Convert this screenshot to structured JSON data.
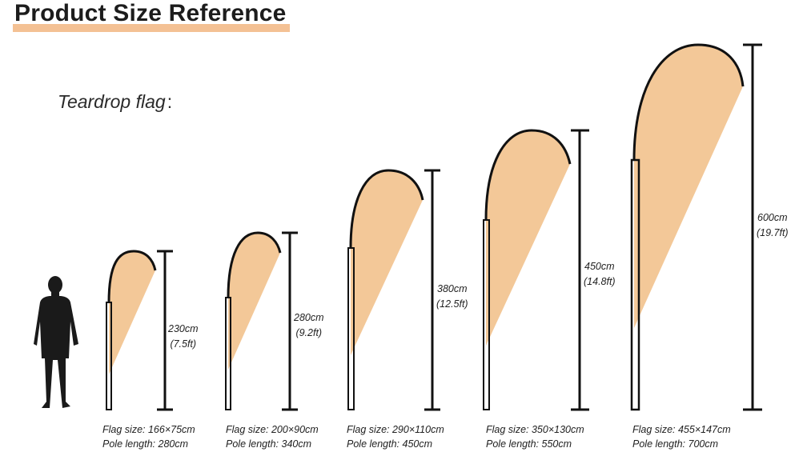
{
  "header": {
    "title": "Product Size Reference",
    "subtitle": "Teardrop flag",
    "subtitle_colon": ":"
  },
  "colors": {
    "flag_fill": "#f3c898",
    "title_underline": "#f4c194",
    "outline": "#111111"
  },
  "icons": {
    "person": "person-silhouette-icon"
  },
  "flags": [
    {
      "height_label": "230cm",
      "height_label_ft": "(7.5ft)",
      "flag_size_label": "Flag size:",
      "flag_size": "166×75cm",
      "pole_length_label": "Pole length:",
      "pole_length": "280cm"
    },
    {
      "height_label": "280cm",
      "height_label_ft": "(9.2ft)",
      "flag_size_label": "Flag size:",
      "flag_size": "200×90cm",
      "pole_length_label": "Pole length:",
      "pole_length": "340cm"
    },
    {
      "height_label": "380cm",
      "height_label_ft": "(12.5ft)",
      "flag_size_label": "Flag size:",
      "flag_size": "290×110cm",
      "pole_length_label": "Pole length:",
      "pole_length": "450cm"
    },
    {
      "height_label": "450cm",
      "height_label_ft": "(14.8ft)",
      "flag_size_label": "Flag size:",
      "flag_size": "350×130cm",
      "pole_length_label": "Pole length:",
      "pole_length": "550cm"
    },
    {
      "height_label": "600cm",
      "height_label_ft": "(19.7ft)",
      "flag_size_label": "Flag size:",
      "flag_size": "455×147cm",
      "pole_length_label": "Pole length:",
      "pole_length": "700cm"
    }
  ]
}
